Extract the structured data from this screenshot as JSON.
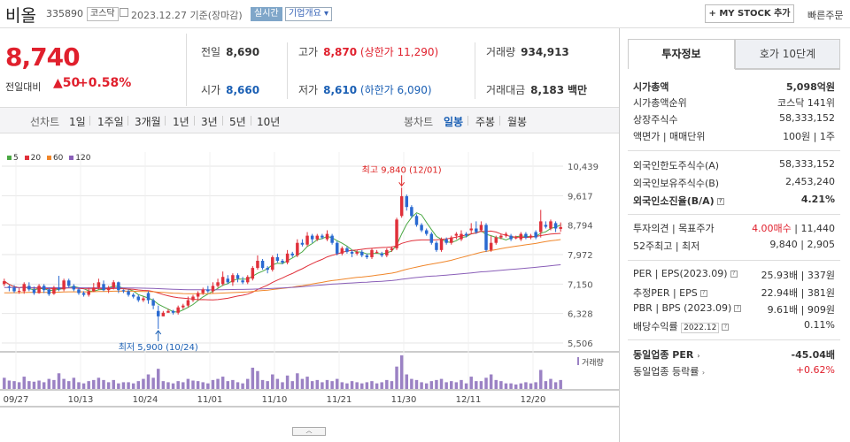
{
  "header": {
    "stock_name": "비올",
    "stock_code": "335890",
    "market_badge": "코스닥",
    "date_text": "2023.12.27 기준(장마감)",
    "realtime_badge": "실시간",
    "company_badge": "기업개요",
    "company_caret": "▾",
    "mystock_button": "+ MY STOCK 추가",
    "quick_order": "빠른주문"
  },
  "price": {
    "current": "8,740",
    "change_label": "전일대비",
    "change_arrow": "▲",
    "change_value": "50",
    "change_pct": "+0.58%"
  },
  "stats": {
    "prev_close_label": "전일",
    "prev_close": "8,690",
    "open_label": "시가",
    "open": "8,660",
    "high_label": "고가",
    "high": "8,870",
    "upper_limit": "(상한가 11,290)",
    "low_label": "저가",
    "low": "8,610",
    "lower_limit": "(하한가 6,090)",
    "volume_label": "거래량",
    "volume": "934,913",
    "amount_label": "거래대금",
    "amount": "8,183",
    "amount_unit": "백만"
  },
  "periods": {
    "line_label": "선차트",
    "line_items": [
      "1일",
      "1주일",
      "3개월",
      "1년",
      "3년",
      "5년",
      "10년"
    ],
    "candle_label": "봉차트",
    "candle_items": [
      "일봉",
      "주봉",
      "월봉"
    ],
    "candle_selected": "일봉"
  },
  "legend": [
    {
      "label": "5",
      "color": "#4aa843"
    },
    {
      "label": "20",
      "color": "#e0303a"
    },
    {
      "label": "60",
      "color": "#f0862a"
    },
    {
      "label": "120",
      "color": "#8a5fb8"
    }
  ],
  "volume_legend": "거래량",
  "chart_data": {
    "type": "candlestick",
    "y_ticks": [
      "10,439",
      "9,617",
      "8,794",
      "7,972",
      "7,150",
      "6,328",
      "5,506"
    ],
    "x_ticks": [
      "09/27",
      "10/13",
      "10/24",
      "11/01",
      "11/10",
      "11/21",
      "11/30",
      "12/11",
      "12/20"
    ],
    "ylim": [
      5506,
      10439
    ],
    "annotation_high": "최고 9,840 (12/01)",
    "annotation_low": "최저 5,900 (10/24)",
    "candles": [
      [
        7150,
        7230,
        7300,
        7090,
        20
      ],
      [
        7080,
        7050,
        7120,
        6950,
        15
      ],
      [
        7050,
        6950,
        7120,
        6900,
        14
      ],
      [
        6950,
        6960,
        7050,
        6880,
        12
      ],
      [
        6950,
        7150,
        7200,
        6880,
        22
      ],
      [
        7100,
        7000,
        7200,
        6950,
        14
      ],
      [
        7000,
        6900,
        7080,
        6850,
        13
      ],
      [
        6900,
        7100,
        7150,
        6880,
        15
      ],
      [
        7100,
        6980,
        7150,
        6900,
        12
      ],
      [
        7000,
        6870,
        7050,
        6820,
        18
      ],
      [
        6880,
        7050,
        7100,
        6850,
        16
      ],
      [
        7050,
        7000,
        7380,
        6950,
        28
      ],
      [
        7000,
        7250,
        7300,
        6950,
        18
      ],
      [
        7250,
        7100,
        7300,
        7050,
        14
      ],
      [
        7100,
        7000,
        7150,
        6950,
        20
      ],
      [
        7000,
        6900,
        7050,
        6850,
        12
      ],
      [
        6900,
        6850,
        6950,
        6800,
        10
      ],
      [
        6850,
        6950,
        7050,
        6800,
        14
      ],
      [
        6950,
        7050,
        7180,
        6930,
        16
      ],
      [
        7050,
        7200,
        7300,
        7000,
        20
      ],
      [
        7150,
        6980,
        7250,
        6950,
        16
      ],
      [
        6980,
        7050,
        7100,
        6900,
        12
      ],
      [
        7050,
        7200,
        7260,
        7000,
        16
      ],
      [
        7200,
        6980,
        7220,
        6900,
        10
      ],
      [
        6980,
        6950,
        7000,
        6900,
        12
      ],
      [
        6950,
        6850,
        7000,
        6800,
        12
      ],
      [
        6850,
        6800,
        6900,
        6750,
        10
      ],
      [
        6800,
        6700,
        6850,
        6650,
        14
      ],
      [
        6700,
        6750,
        6800,
        6650,
        18
      ],
      [
        6900,
        6700,
        6950,
        6600,
        26
      ],
      [
        6700,
        6550,
        6750,
        6450,
        20
      ],
      [
        6400,
        6250,
        6550,
        5900,
        36
      ],
      [
        6250,
        6350,
        6400,
        6250,
        14
      ],
      [
        6350,
        6400,
        6450,
        6350,
        12
      ],
      [
        6400,
        6350,
        6430,
        6300,
        10
      ],
      [
        6350,
        6500,
        6550,
        6300,
        14
      ],
      [
        6500,
        6550,
        6600,
        6450,
        12
      ],
      [
        6550,
        6700,
        6800,
        6500,
        18
      ],
      [
        6700,
        6800,
        6850,
        6650,
        15
      ],
      [
        6800,
        6900,
        6950,
        6700,
        14
      ],
      [
        6900,
        7000,
        7050,
        6850,
        12
      ],
      [
        7000,
        6950,
        7100,
        6900,
        10
      ],
      [
        6950,
        7100,
        7200,
        6900,
        16
      ],
      [
        7100,
        7200,
        7300,
        7050,
        18
      ],
      [
        7150,
        7350,
        7500,
        7100,
        22
      ],
      [
        7300,
        7200,
        7400,
        7150,
        14
      ],
      [
        7200,
        7400,
        7450,
        7100,
        16
      ],
      [
        7400,
        7300,
        7450,
        7200,
        12
      ],
      [
        7250,
        7200,
        7350,
        7150,
        10
      ],
      [
        7200,
        7350,
        7400,
        7150,
        18
      ],
      [
        7300,
        7600,
        7650,
        7250,
        38
      ],
      [
        7600,
        7800,
        7950,
        7550,
        32
      ],
      [
        7800,
        7600,
        7850,
        7550,
        16
      ],
      [
        7600,
        7550,
        7650,
        7450,
        14
      ],
      [
        7550,
        7900,
        7950,
        7500,
        26
      ],
      [
        7900,
        7800,
        8000,
        7750,
        18
      ],
      [
        7800,
        7750,
        7850,
        7700,
        12
      ],
      [
        7750,
        8000,
        8100,
        7700,
        24
      ],
      [
        8000,
        7950,
        8050,
        7900,
        14
      ],
      [
        7950,
        8300,
        8400,
        7900,
        28
      ],
      [
        8300,
        8250,
        8400,
        8200,
        18
      ],
      [
        8250,
        8500,
        8600,
        8200,
        22
      ],
      [
        8500,
        8400,
        8550,
        8300,
        14
      ],
      [
        8400,
        8500,
        8550,
        8350,
        16
      ],
      [
        8500,
        8450,
        8550,
        8400,
        12
      ],
      [
        8400,
        8550,
        8650,
        8350,
        16
      ],
      [
        8500,
        8300,
        8550,
        8250,
        14
      ],
      [
        8300,
        8000,
        8350,
        7950,
        18
      ],
      [
        8000,
        8150,
        8200,
        7950,
        12
      ],
      [
        8150,
        8050,
        8200,
        8000,
        10
      ],
      [
        8050,
        8000,
        8100,
        7900,
        14
      ],
      [
        8000,
        8050,
        8100,
        7950,
        12
      ],
      [
        8050,
        7950,
        8100,
        7900,
        10
      ],
      [
        7950,
        7900,
        8000,
        7850,
        12
      ],
      [
        7900,
        8100,
        8150,
        7850,
        14
      ],
      [
        8050,
        8050,
        8100,
        8000,
        10
      ],
      [
        8000,
        7950,
        8050,
        7900,
        12
      ],
      [
        7950,
        8100,
        8150,
        7900,
        16
      ],
      [
        8100,
        8150,
        8200,
        8050,
        14
      ],
      [
        8150,
        8950,
        9000,
        8100,
        40
      ],
      [
        9050,
        9600,
        9840,
        9000,
        60
      ],
      [
        9600,
        9300,
        9650,
        9200,
        26
      ],
      [
        9300,
        9050,
        9350,
        9000,
        18
      ],
      [
        9050,
        8800,
        9100,
        8750,
        16
      ],
      [
        8800,
        8650,
        8850,
        8600,
        12
      ],
      [
        8650,
        8550,
        8700,
        8500,
        10
      ],
      [
        8550,
        8300,
        8600,
        8250,
        14
      ],
      [
        8300,
        8100,
        8350,
        8050,
        16
      ],
      [
        8100,
        8400,
        8450,
        8050,
        18
      ],
      [
        8400,
        8300,
        8450,
        8250,
        12
      ],
      [
        8300,
        8450,
        8500,
        8250,
        14
      ],
      [
        8500,
        8550,
        8600,
        8400,
        12
      ],
      [
        8400,
        8550,
        8650,
        8350,
        16
      ],
      [
        8550,
        8500,
        8600,
        8450,
        10
      ],
      [
        8650,
        8700,
        8850,
        8550,
        22
      ],
      [
        8700,
        8600,
        8900,
        8550,
        14
      ],
      [
        8650,
        8800,
        8900,
        8600,
        14
      ],
      [
        8800,
        8100,
        8850,
        8050,
        20
      ],
      [
        8100,
        8300,
        8500,
        8050,
        26
      ],
      [
        8300,
        8450,
        8500,
        8250,
        16
      ],
      [
        8450,
        8500,
        8550,
        8400,
        14
      ],
      [
        8500,
        8550,
        8600,
        8450,
        10
      ],
      [
        8500,
        8400,
        8550,
        8350,
        10
      ],
      [
        8450,
        8450,
        8500,
        8400,
        8
      ],
      [
        8400,
        8550,
        8600,
        8350,
        10
      ],
      [
        8550,
        8450,
        8600,
        8400,
        12
      ],
      [
        8450,
        8500,
        8550,
        8400,
        10
      ],
      [
        8600,
        8450,
        8650,
        8400,
        12
      ],
      [
        8600,
        8900,
        9220,
        8450,
        34
      ],
      [
        8800,
        8750,
        8900,
        8700,
        14
      ],
      [
        8700,
        8900,
        8950,
        8650,
        18
      ],
      [
        8850,
        8700,
        8900,
        8600,
        12
      ],
      [
        8690,
        8740,
        8870,
        8610,
        16
      ]
    ]
  },
  "panel": {
    "tab_active": "투자정보",
    "tab_inactive": "호가 10단계",
    "market_cap_label": "시가총액",
    "market_cap": "5,098억원",
    "market_cap_rank_label": "시가총액순위",
    "market_cap_rank": "코스닥 141위",
    "shares_label": "상장주식수",
    "shares": "58,333,152",
    "par_label": "액면가 | 매매단위",
    "par": "100원 | 1주",
    "foreign_limit_label": "외국인한도주식수(A)",
    "foreign_limit": "58,333,152",
    "foreign_hold_label": "외국인보유주식수(B)",
    "foreign_hold": "2,453,240",
    "foreign_ratio_label": "외국인소진율(B/A)",
    "foreign_ratio": "4.21%",
    "opinion_label": "투자의견 | 목표주가",
    "opinion": "4.00매수",
    "target": "11,440",
    "wk52_label": "52주최고 | 최저",
    "wk52": "9,840 | 2,905",
    "per_label": "PER | EPS(2023.09)",
    "per": "25.93배 | 337원",
    "est_per_label": "추정PER | EPS",
    "est_per": "22.94배 | 381원",
    "pbr_label": "PBR | BPS (2023.09)",
    "pbr": "9.61배 | 909원",
    "div_label": "배당수익률",
    "div_date": "2022.12",
    "div": "0.11%",
    "industry_per_label": "동일업종 PER",
    "industry_per": "-45.04배",
    "industry_chg_label": "동일업종 등락률",
    "industry_chg": "+0.62%"
  }
}
